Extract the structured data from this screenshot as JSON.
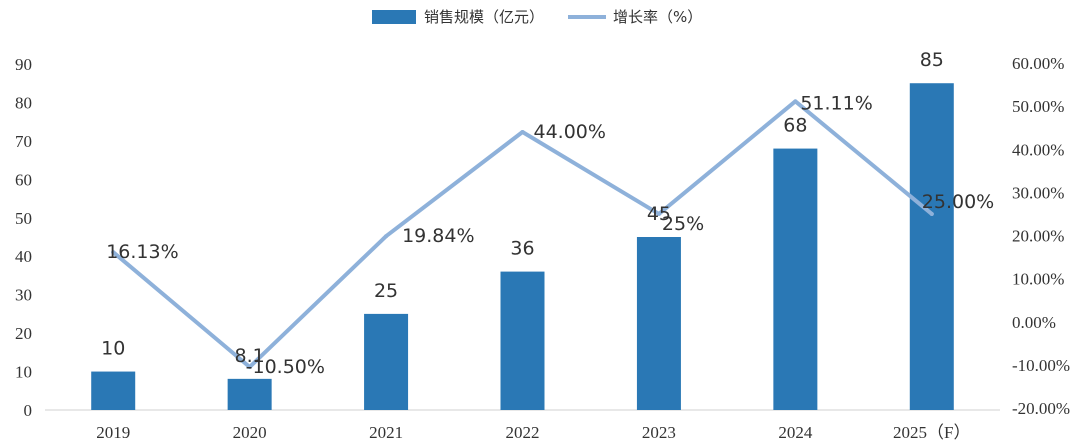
{
  "chart_data": {
    "type": "bar",
    "categories": [
      "2019",
      "2020",
      "2021",
      "2022",
      "2023",
      "2024",
      "2025（F）"
    ],
    "series": [
      {
        "name": "销售规模（亿元）",
        "kind": "bar",
        "axis": "left",
        "color": "#2a78b5",
        "values": [
          10,
          8.1,
          25,
          36,
          45,
          68,
          85
        ],
        "labels": [
          "10",
          "8.1",
          "25",
          "36",
          "45",
          "68",
          "85"
        ]
      },
      {
        "name": "增长率（%）",
        "kind": "line",
        "axis": "right",
        "color": "#8eb1da",
        "values": [
          16.13,
          -10.5,
          19.84,
          44.0,
          25.0,
          51.11,
          25.0
        ],
        "labels": [
          "16.13%",
          "-10.50%",
          "19.84%",
          "44.00%",
          "25%",
          "51.11%",
          "25.00%"
        ]
      }
    ],
    "y_left": {
      "ylim": [
        0,
        90
      ],
      "ticks": [
        "0",
        "10",
        "20",
        "30",
        "40",
        "50",
        "60",
        "70",
        "80",
        "90"
      ]
    },
    "y_right": {
      "ylim": [
        -20,
        60
      ],
      "ticks": [
        "-20.00%",
        "-10.00%",
        "0.00%",
        "10.00%",
        "20.00%",
        "30.00%",
        "40.00%",
        "50.00%",
        "60.00%"
      ]
    },
    "legend_position": "top-center",
    "grid": false
  }
}
